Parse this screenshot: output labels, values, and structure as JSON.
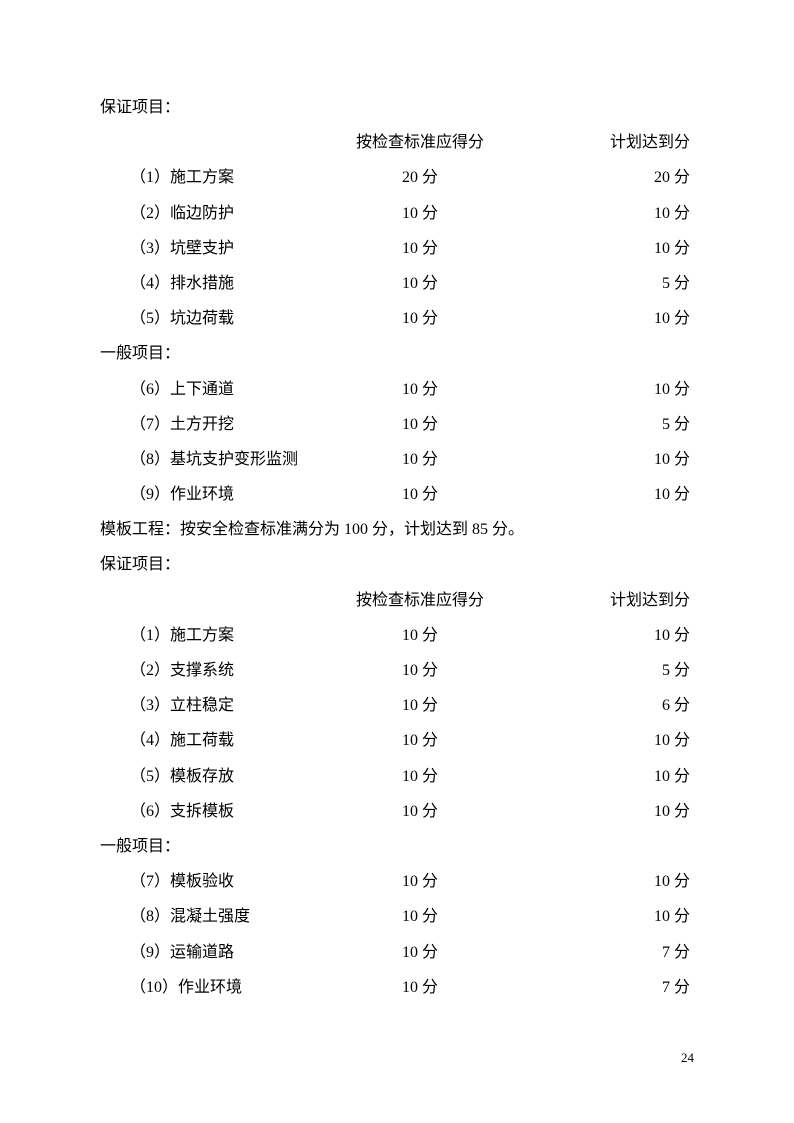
{
  "section1": {
    "heading": "保证项目：",
    "header_col1": "按检查标准应得分",
    "header_col2": "计划达到分",
    "rows": [
      {
        "label": "（1）施工方案",
        "score1": "20 分",
        "score2": "20 分"
      },
      {
        "label": "（2）临边防护",
        "score1": "10 分",
        "score2": "10 分"
      },
      {
        "label": "（3）坑壁支护",
        "score1": "10 分",
        "score2": "10 分"
      },
      {
        "label": "（4）排水措施",
        "score1": "10 分",
        "score2": "5 分"
      },
      {
        "label": "（5）坑边荷载",
        "score1": "10 分",
        "score2": "10 分"
      }
    ]
  },
  "section2": {
    "heading": "一般项目：",
    "rows": [
      {
        "label": "（6）上下通道",
        "score1": "10 分",
        "score2": "10 分"
      },
      {
        "label": "（7）土方开挖",
        "score1": "10 分",
        "score2": "5 分"
      },
      {
        "label": "（8）基坑支护变形监测",
        "score1": "10 分",
        "score2": "10 分"
      },
      {
        "label": "（9）作业环境",
        "score1": "10 分",
        "score2": "10 分"
      }
    ]
  },
  "summary": "模板工程：按安全检查标准满分为 100 分，计划达到 85 分。",
  "section3": {
    "heading": "保证项目：",
    "header_col1": "按检查标准应得分",
    "header_col2": "计划达到分",
    "rows": [
      {
        "label": "（1）施工方案",
        "score1": "10 分",
        "score2": "10 分"
      },
      {
        "label": "（2）支撑系统",
        "score1": "10 分",
        "score2": "5 分"
      },
      {
        "label": "（3）立柱稳定",
        "score1": "10 分",
        "score2": "6 分"
      },
      {
        "label": "（4）施工荷载",
        "score1": "10 分",
        "score2": "10 分"
      },
      {
        "label": "（5）模板存放",
        "score1": "10 分",
        "score2": "10 分"
      },
      {
        "label": "（6）支拆模板",
        "score1": "10 分",
        "score2": "10 分"
      }
    ]
  },
  "section4": {
    "heading": "一般项目：",
    "rows": [
      {
        "label": "（7）模板验收",
        "score1": "10 分",
        "score2": "10 分"
      },
      {
        "label": "（8）混凝土强度",
        "score1": "10 分",
        "score2": "10 分"
      },
      {
        "label": "（9）运输道路",
        "score1": "10 分",
        "score2": "7 分"
      },
      {
        "label": "（10）作业环境",
        "score1": "10 分",
        "score2": "7 分"
      }
    ]
  },
  "page_number": "24"
}
